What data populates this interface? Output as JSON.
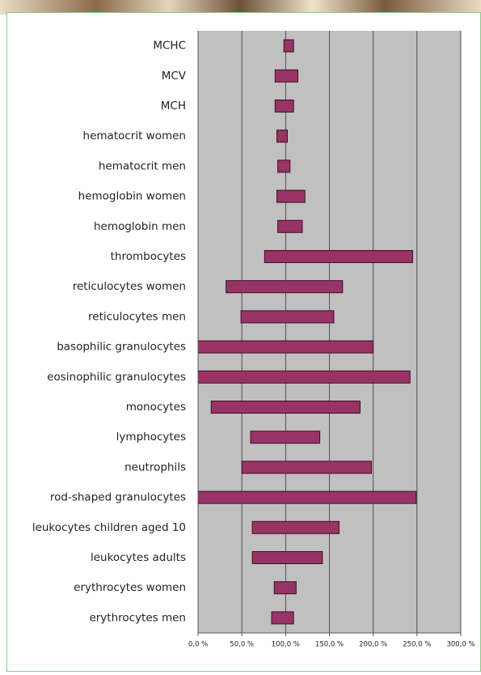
{
  "chart_data": {
    "type": "floating-bar",
    "categories": [
      "MCHC",
      "MCV",
      "MCH",
      "hematocrit women",
      "hematocrit men",
      "hemoglobin women",
      "hemoglobin men",
      "thrombocytes",
      "reticulocytes women",
      "reticulocytes men",
      "basophilic granulocytes",
      "eosinophilic granulocytes",
      "monocytes",
      "lymphocytes",
      "neutrophils",
      "rod-shaped granulocytes",
      "leukocytes children aged 10",
      "leukocytes adults",
      "erythrocytes women",
      "erythrocytes men"
    ],
    "values": [
      [
        98,
        109
      ],
      [
        88,
        114
      ],
      [
        88,
        109
      ],
      [
        90,
        102
      ],
      [
        91,
        105
      ],
      [
        90,
        122
      ],
      [
        91,
        119
      ],
      [
        76,
        245
      ],
      [
        32,
        165
      ],
      [
        49,
        155
      ],
      [
        0,
        200
      ],
      [
        0,
        242
      ],
      [
        15,
        185
      ],
      [
        60,
        139
      ],
      [
        50,
        198
      ],
      [
        0,
        249
      ],
      [
        62,
        161
      ],
      [
        62,
        142
      ],
      [
        87,
        112
      ],
      [
        84,
        109
      ]
    ],
    "color": "#993366",
    "xlim": [
      0,
      300
    ],
    "xticks": [
      {
        "value": 0,
        "label": "0,0 %"
      },
      {
        "value": 50,
        "label": "50,0 %"
      },
      {
        "value": 100,
        "label": "100,0 %"
      },
      {
        "value": 150,
        "label": "150,0 %"
      },
      {
        "value": 200,
        "label": "200,0 %"
      },
      {
        "value": 250,
        "label": "250,0 %"
      },
      {
        "value": 300,
        "label": "300,0 %"
      }
    ],
    "grid": true
  }
}
